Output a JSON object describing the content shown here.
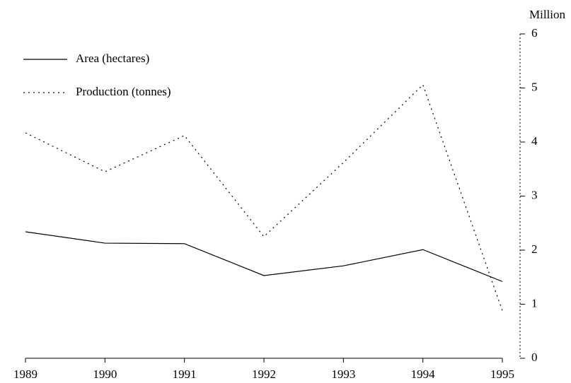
{
  "chart_data": {
    "type": "line",
    "y_axis_label": "Million",
    "x": [
      1989,
      1990,
      1991,
      1992,
      1993,
      1994,
      1995
    ],
    "xlim": [
      1989,
      1995
    ],
    "xticks": [
      1989,
      1990,
      1991,
      1992,
      1993,
      1994,
      1995
    ],
    "ylim": [
      0,
      6
    ],
    "yticks": [
      0,
      1,
      2,
      3,
      4,
      5,
      6
    ],
    "legend": "upper left",
    "series": [
      {
        "name": "Area (hectares)",
        "color": "#000000",
        "style": "solid",
        "values": [
          2.34,
          2.13,
          2.12,
          1.53,
          1.71,
          2.01,
          1.42
        ]
      },
      {
        "name": "Production (tonnes)",
        "color": "#000000",
        "style": "dotted",
        "values": [
          4.17,
          3.45,
          4.12,
          2.25,
          3.62,
          5.06,
          0.88
        ]
      }
    ]
  }
}
